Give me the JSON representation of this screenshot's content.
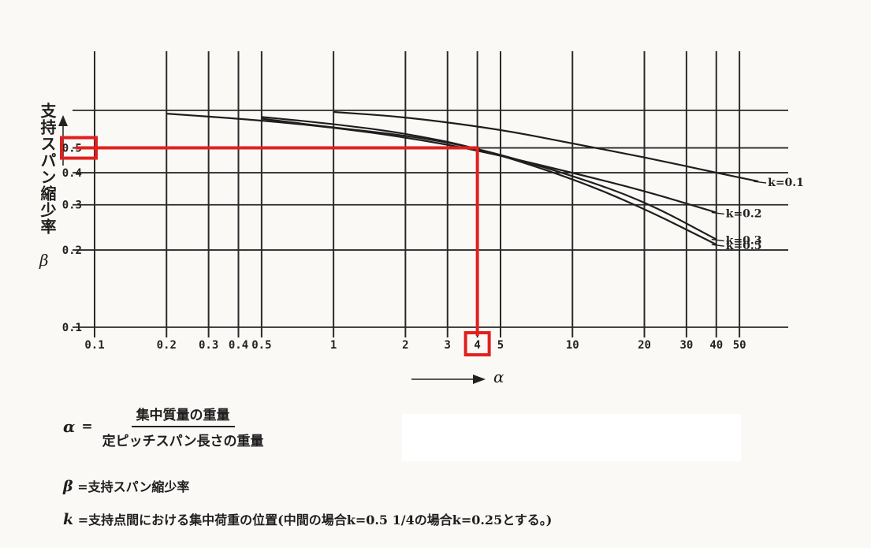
{
  "chart_data": {
    "type": "line",
    "xscale": "log",
    "yscale": "log",
    "xlim": [
      0.1,
      80
    ],
    "ylim": [
      0.1,
      0.7
    ],
    "grid": true,
    "x_ticks": [
      0.1,
      0.2,
      0.3,
      0.4,
      0.5,
      1,
      2,
      3,
      4,
      5,
      10,
      20,
      30,
      40,
      50
    ],
    "x_tick_labels": [
      "0.1",
      "0.2",
      "0.3",
      "0.4",
      "0.5",
      "1",
      "2",
      "3",
      "4",
      "5",
      "10",
      "20",
      "30",
      "40",
      "50"
    ],
    "y_ticks": [
      0.1,
      0.2,
      0.3,
      0.4,
      0.5
    ],
    "y_tick_labels": [
      "0.1",
      "0.2",
      "0.3",
      "0.4",
      "0.5"
    ],
    "y_grid_extra": [
      0.7
    ],
    "ylabel": "支持スパン縮少率",
    "ylabel_symbol": "β",
    "xlabel_symbol": "α",
    "series": [
      {
        "name": "k=0.1",
        "x": [
          1,
          2,
          5,
          10,
          20,
          40,
          60
        ],
        "y": [
          0.69,
          0.66,
          0.59,
          0.52,
          0.46,
          0.4,
          0.37
        ]
      },
      {
        "name": "k=0.2",
        "x": [
          0.2,
          0.5,
          1,
          2,
          4,
          10,
          20,
          40
        ],
        "y": [
          0.68,
          0.64,
          0.6,
          0.55,
          0.49,
          0.4,
          0.34,
          0.28
        ]
      },
      {
        "name": "k=0.3",
        "x": [
          0.5,
          1,
          2,
          4,
          10,
          20,
          40
        ],
        "y": [
          0.65,
          0.6,
          0.56,
          0.5,
          0.39,
          0.31,
          0.22
        ]
      },
      {
        "name": "k=0.5",
        "x": [
          0.5,
          1,
          2,
          4,
          10,
          20,
          40
        ],
        "y": [
          0.66,
          0.62,
          0.57,
          0.5,
          0.38,
          0.29,
          0.21
        ]
      }
    ],
    "highlight": {
      "x": 4,
      "y": 0.5,
      "color": "#e0201e",
      "x_label": "4",
      "y_label": "0.5"
    }
  },
  "formula": {
    "alpha_symbol": "α",
    "equals": "=",
    "numerator": "集中質量の重量",
    "denominator": "定ピッチスパン長さの重量"
  },
  "definitions": [
    {
      "symbol": "β",
      "text": "=支持スパン縮少率"
    },
    {
      "symbol": "k",
      "text": "=支持点間における集中荷重の位置(中間の場合k=0.5 1/4の場合k=0.25とする。)"
    }
  ]
}
